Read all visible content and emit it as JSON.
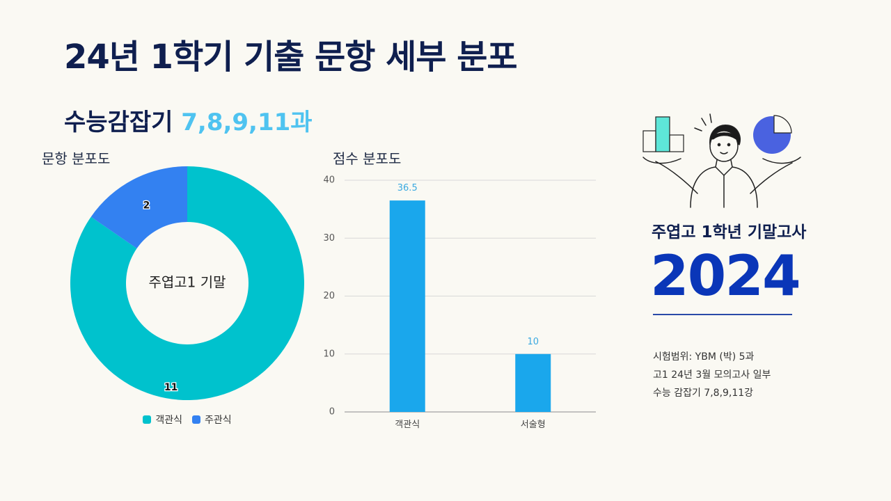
{
  "title": "24년 1학기 기출 문항 세부 분포",
  "subtitle": {
    "main": "수능감잡기",
    "accent": "7,8,9,11과"
  },
  "colors": {
    "navy": "#0f1f4f",
    "accent": "#4fc3f0",
    "year": "#0a36b8"
  },
  "chart_data": [
    {
      "type": "pie",
      "title": "문항 분포도",
      "donut": true,
      "center_label": "주엽고1 기말",
      "slices": [
        {
          "label": "객관식",
          "value": 11,
          "color": "#00c2cd"
        },
        {
          "label": "주관식",
          "value": 2,
          "color": "#3381f1"
        }
      ],
      "legend": [
        "객관식",
        "주관식"
      ],
      "legend_position": "bottom"
    },
    {
      "type": "bar",
      "title": "점수 분포도",
      "categories": [
        "객관식",
        "서술형"
      ],
      "values": [
        36.5,
        10
      ],
      "data_labels": [
        "36.5",
        "10"
      ],
      "ylim": [
        0,
        40
      ],
      "yticks": [
        0,
        10,
        20,
        30,
        40
      ],
      "grid": true,
      "bar_color": "#1aa7ec",
      "label_color": "#3aa9e0"
    }
  ],
  "side": {
    "school_title": "주엽고 1학년 기말고사",
    "year": "2024",
    "info": [
      "시험범위: YBM (박) 5과",
      "고1 24년 3월 모의고사 일부",
      "수능 감잡기 7,8,9,11강"
    ]
  }
}
